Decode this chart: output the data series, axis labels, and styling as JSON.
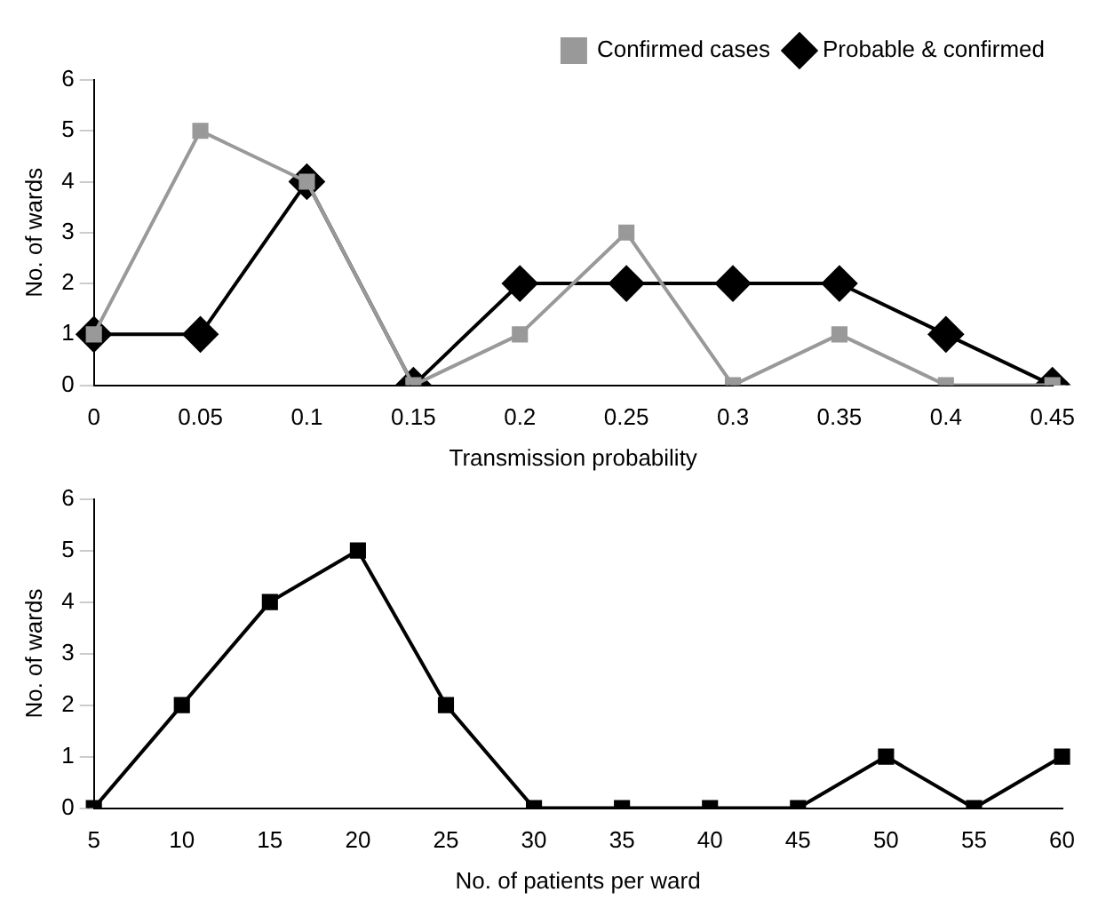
{
  "chart_data": [
    {
      "type": "line",
      "xlabel": "Transmission probability",
      "ylabel": "No. of wards",
      "categories": [
        "0",
        "0.05",
        "0.1",
        "0.15",
        "0.2",
        "0.25",
        "0.3",
        "0.35",
        "0.4",
        "0.45"
      ],
      "series": [
        {
          "name": "Confirmed cases",
          "color": "#999999",
          "marker": "square",
          "values": [
            1,
            5,
            4,
            0,
            1,
            3,
            0,
            1,
            0,
            0
          ]
        },
        {
          "name": "Probable & confirmed",
          "color": "#000000",
          "marker": "diamond",
          "values": [
            1,
            1,
            4,
            0,
            2,
            2,
            2,
            2,
            1,
            0
          ]
        }
      ],
      "ylim": [
        0,
        6
      ],
      "yticks": [
        0,
        1,
        2,
        3,
        4,
        5,
        6
      ],
      "grid": false,
      "legend": "top right"
    },
    {
      "type": "line",
      "xlabel": "No. of patients per ward",
      "ylabel": "No. of wards",
      "categories": [
        "5",
        "10",
        "15",
        "20",
        "25",
        "30",
        "35",
        "40",
        "45",
        "50",
        "55",
        "60"
      ],
      "series": [
        {
          "color": "#000000",
          "marker": "square",
          "values": [
            0,
            2,
            4,
            5,
            2,
            0,
            0,
            0,
            0,
            1,
            0,
            1
          ]
        }
      ],
      "ylim": [
        0,
        6
      ],
      "yticks": [
        0,
        1,
        2,
        3,
        4,
        5,
        6
      ],
      "grid": false,
      "legend": false
    }
  ]
}
